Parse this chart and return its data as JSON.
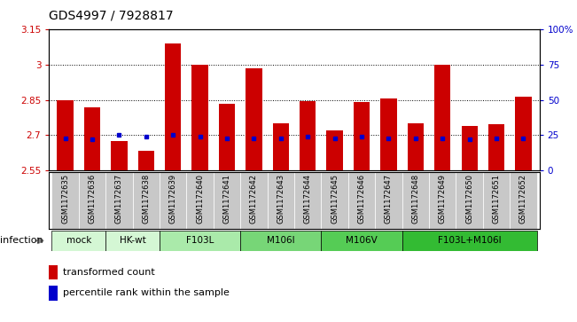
{
  "title": "GDS4997 / 7928817",
  "samples": [
    "GSM1172635",
    "GSM1172636",
    "GSM1172637",
    "GSM1172638",
    "GSM1172639",
    "GSM1172640",
    "GSM1172641",
    "GSM1172642",
    "GSM1172643",
    "GSM1172644",
    "GSM1172645",
    "GSM1172646",
    "GSM1172647",
    "GSM1172648",
    "GSM1172649",
    "GSM1172650",
    "GSM1172651",
    "GSM1172652"
  ],
  "transformed_count": [
    2.85,
    2.82,
    2.675,
    2.635,
    3.09,
    3.0,
    2.835,
    2.985,
    2.75,
    2.845,
    2.72,
    2.84,
    2.855,
    2.75,
    3.0,
    2.74,
    2.745,
    2.865
  ],
  "percentile_rank": [
    23,
    22,
    25,
    24,
    25,
    24,
    23,
    23,
    23,
    24,
    23,
    24,
    23,
    23,
    23,
    22,
    23,
    23
  ],
  "group_defs": [
    {
      "label": "mock",
      "indices": [
        0,
        1
      ],
      "color": "#d4f7d4"
    },
    {
      "label": "HK-wt",
      "indices": [
        2,
        3
      ],
      "color": "#d4f7d4"
    },
    {
      "label": "F103L",
      "indices": [
        4,
        5,
        6
      ],
      "color": "#aaeaaa"
    },
    {
      "label": "M106I",
      "indices": [
        7,
        8,
        9
      ],
      "color": "#77d677"
    },
    {
      "label": "M106V",
      "indices": [
        10,
        11,
        12
      ],
      "color": "#55cc55"
    },
    {
      "label": "F103L+M106I",
      "indices": [
        13,
        14,
        15,
        16,
        17
      ],
      "color": "#33bb33"
    }
  ],
  "ylim_left": [
    2.55,
    3.15
  ],
  "ylim_right": [
    0,
    100
  ],
  "yticks_left": [
    2.55,
    2.7,
    2.85,
    3.0,
    3.15
  ],
  "yticks_left_labels": [
    "2.55",
    "2.7",
    "2.85",
    "3",
    "3.15"
  ],
  "yticks_right": [
    0,
    25,
    50,
    75,
    100
  ],
  "yticks_right_labels": [
    "0",
    "25",
    "50",
    "75",
    "100%"
  ],
  "bar_color": "#cc0000",
  "percentile_color": "#0000cc",
  "tick_bg_color": "#c8c8c8",
  "infection_label": "infection",
  "legend1": "transformed count",
  "legend2": "percentile rank within the sample"
}
